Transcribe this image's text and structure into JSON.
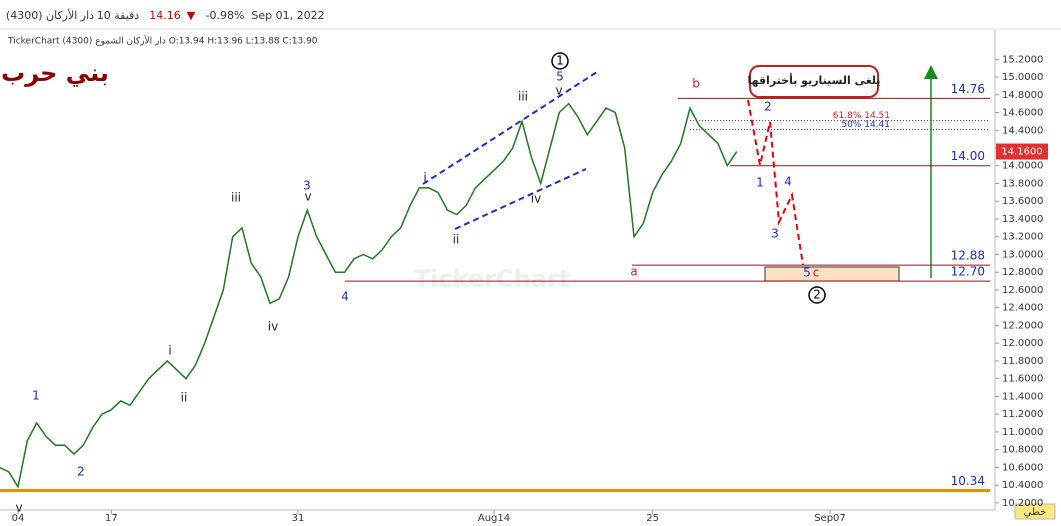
{
  "chart_data": {
    "type": "line",
    "title": "بني حرب",
    "header": {
      "symbol": "(4300) دار الأركان",
      "interval": "10 دقيقة",
      "price": "14.16",
      "direction": "▼",
      "change": "-0.98%",
      "date": "Sep 01, 2022"
    },
    "info_line": "TickerChart دار الأركان الشموع (4300) O:13.94 H:13.96 L:13.88 C:13.90",
    "watermark": "TickerChart",
    "note": "يلغى السيناريو بأختراقها",
    "chart_style_button": "خطي",
    "categories": [
      null,
      null,
      "04",
      null,
      null,
      null,
      null,
      null,
      null,
      null,
      null,
      null,
      "17",
      null,
      null,
      null,
      null,
      null,
      null,
      null,
      null,
      null,
      null,
      null,
      null,
      null,
      null,
      null,
      null,
      null,
      null,
      null,
      "31",
      null,
      null,
      null,
      null,
      null,
      null,
      null,
      null,
      null,
      null,
      null,
      null,
      null,
      null,
      null,
      null,
      null,
      null,
      null,
      null,
      "Aug14",
      null,
      null,
      null,
      null,
      null,
      null,
      null,
      null,
      null,
      null,
      null,
      null,
      null,
      null,
      null,
      null,
      "25",
      null,
      null,
      null,
      null,
      null,
      null,
      null,
      null,
      null,
      null,
      null,
      null,
      null,
      null,
      null,
      null,
      null,
      null,
      "Sep07",
      null,
      null,
      null,
      null,
      null,
      null,
      null,
      null,
      null,
      null,
      null,
      null,
      null,
      null,
      null,
      null,
      null
    ],
    "series": [
      {
        "name": "دار الأركان",
        "color": "#1f7a1f",
        "values": [
          10.6,
          10.55,
          10.38,
          10.9,
          11.1,
          10.95,
          10.85,
          10.85,
          10.75,
          10.85,
          11.05,
          11.2,
          11.25,
          11.35,
          11.3,
          11.45,
          11.6,
          11.7,
          11.8,
          11.7,
          11.6,
          11.75,
          12.0,
          12.3,
          12.6,
          13.2,
          13.3,
          12.9,
          12.75,
          12.45,
          12.5,
          12.75,
          13.2,
          13.5,
          13.2,
          13.0,
          12.8,
          12.8,
          12.95,
          13.0,
          12.95,
          13.05,
          13.2,
          13.3,
          13.55,
          13.75,
          13.75,
          13.7,
          13.5,
          13.45,
          13.55,
          13.75,
          13.85,
          13.95,
          14.05,
          14.2,
          14.5,
          14.1,
          13.8,
          14.2,
          14.6,
          14.7,
          14.55,
          14.35,
          14.5,
          14.65,
          14.6,
          14.2,
          13.2,
          13.35,
          13.7,
          13.9,
          14.05,
          14.25,
          14.65,
          14.45,
          14.35,
          14.25,
          14.0,
          14.16,
          null,
          null,
          null,
          null,
          null,
          null,
          null,
          null,
          null,
          null,
          null,
          null,
          null,
          null,
          null,
          null,
          null,
          null,
          null,
          null,
          null,
          null,
          null,
          null,
          null,
          null,
          null
        ]
      }
    ],
    "ylim": [
      10.12,
      15.53
    ],
    "yticks": [
      {
        "value": 10.2,
        "label": "10.2000"
      },
      {
        "value": 10.4,
        "label": "10.4000"
      },
      {
        "value": 10.6,
        "label": "10.6000"
      },
      {
        "value": 10.8,
        "label": "10.8000"
      },
      {
        "value": 11.0,
        "label": "11.0000"
      },
      {
        "value": 11.2,
        "label": "11.2000"
      },
      {
        "value": 11.4,
        "label": "11.4000"
      },
      {
        "value": 11.6,
        "label": "11.6000"
      },
      {
        "value": 11.8,
        "label": "11.8000"
      },
      {
        "value": 12.0,
        "label": "12.0000"
      },
      {
        "value": 12.2,
        "label": "12.2000"
      },
      {
        "value": 12.4,
        "label": "12.4000"
      },
      {
        "value": 12.6,
        "label": "12.6000"
      },
      {
        "value": 12.8,
        "label": "12.8000"
      },
      {
        "value": 13.0,
        "label": "13.0000"
      },
      {
        "value": 13.2,
        "label": "13.2000"
      },
      {
        "value": 13.4,
        "label": "13.4000"
      },
      {
        "value": 13.6,
        "label": "13.6000"
      },
      {
        "value": 13.8,
        "label": "13.8000"
      },
      {
        "value": 14.0,
        "label": "14.0000"
      },
      {
        "value": 14.2,
        "label": "14.2000"
      },
      {
        "value": 14.4,
        "label": "14.4000"
      },
      {
        "value": 14.6,
        "label": "14.6000"
      },
      {
        "value": 14.8,
        "label": "14.8000"
      },
      {
        "value": 15.0,
        "label": "15.0000"
      },
      {
        "value": 15.2,
        "label": "15.2000"
      }
    ],
    "last_price": {
      "value": 14.16,
      "label": "14.1600"
    },
    "levels": [
      14.76,
      {
        "value": 14.0,
        "label": "14.00"
      },
      12.88,
      {
        "value": 12.7,
        "label": "12.70"
      },
      10.34
    ],
    "fib_levels": [
      {
        "value": 14.51,
        "label": "61.8%  14.51"
      },
      {
        "value": 14.41,
        "label": "50%  14.41"
      }
    ],
    "wave_labels": [
      "1",
      "2",
      "v",
      "i",
      "ii",
      "iii",
      "iv",
      "3",
      "v",
      "4",
      "i",
      "ii",
      "iii",
      "iv",
      "5",
      "v",
      "1",
      "b",
      "a",
      "2",
      "1",
      "4",
      "3",
      "5",
      "c",
      "2"
    ]
  }
}
